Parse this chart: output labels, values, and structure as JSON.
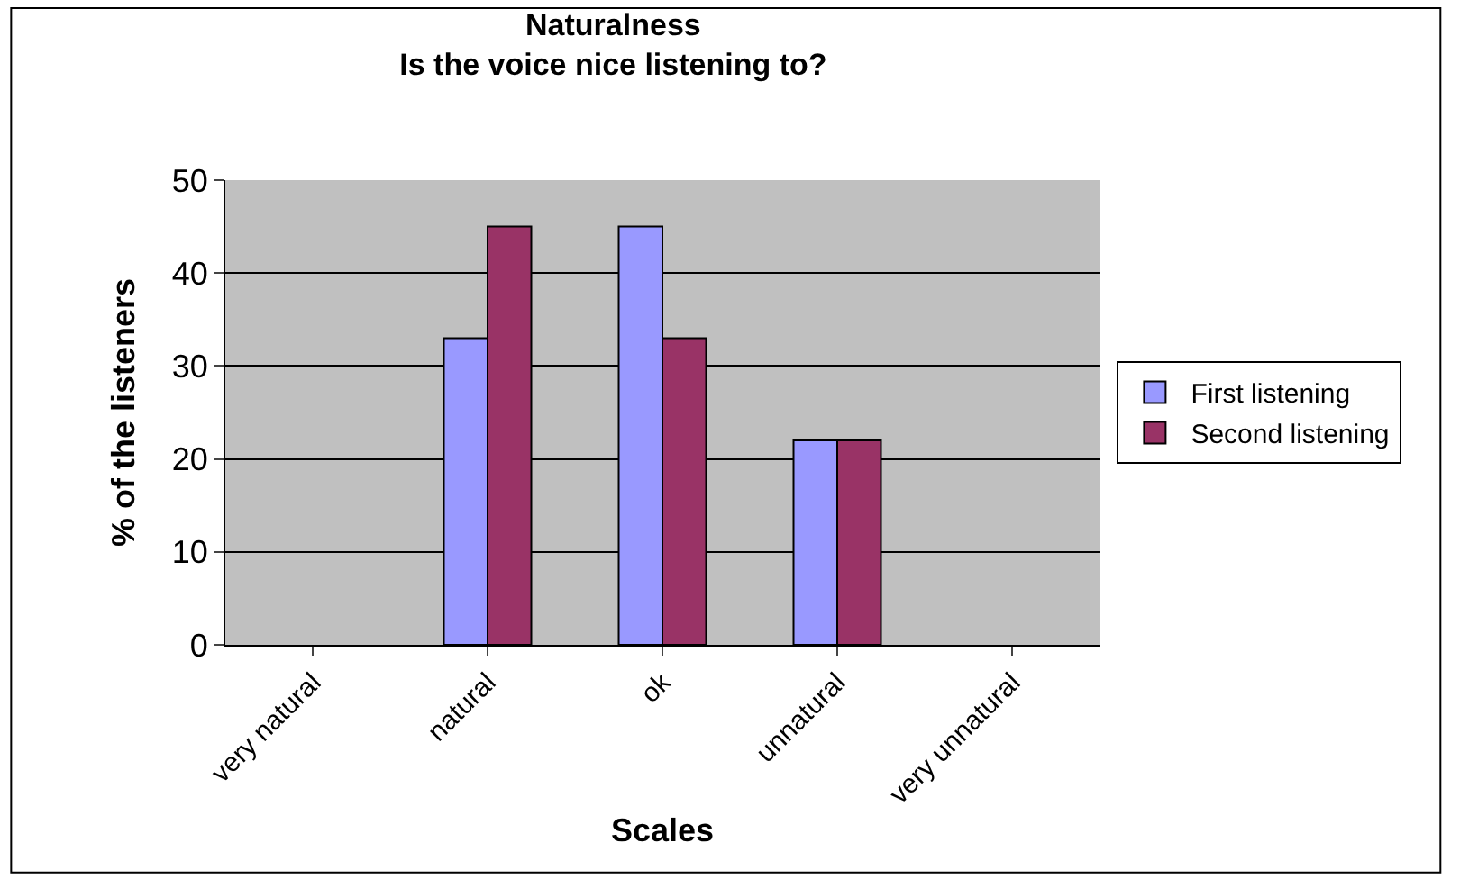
{
  "chart_data": {
    "type": "bar",
    "title": "Naturalness",
    "subtitle": "Is the voice nice listening to?",
    "xlabel": "Scales",
    "ylabel": "% of the listeners",
    "categories": [
      "very natural",
      "natural",
      "ok",
      "unnatural",
      "very unnatural"
    ],
    "series": [
      {
        "name": "First listening",
        "color": "#9999ff",
        "values": [
          null,
          33,
          45,
          22,
          null
        ]
      },
      {
        "name": "Second listening",
        "color": "#993366",
        "values": [
          null,
          45,
          33,
          22,
          null
        ]
      }
    ],
    "ylim": [
      0,
      50
    ],
    "yticks": [
      0,
      10,
      20,
      30,
      40,
      50
    ],
    "grid": "y",
    "legend": "right"
  }
}
